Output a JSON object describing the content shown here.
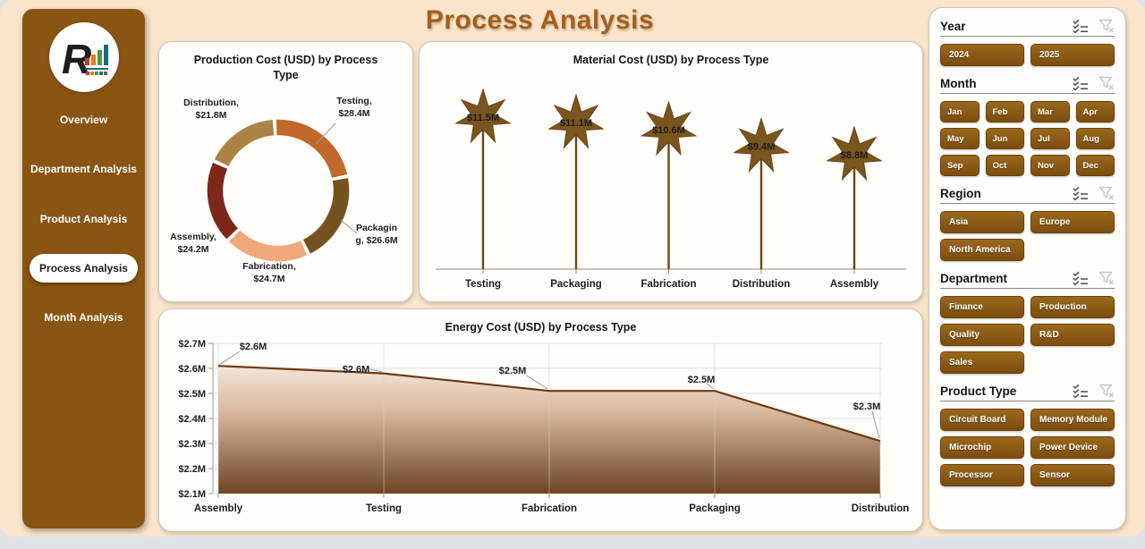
{
  "app": {
    "title": "Process Analysis",
    "logo_letter": "R"
  },
  "sidebar": {
    "items": [
      {
        "label": "Overview",
        "active": false
      },
      {
        "label": "Department Analysis",
        "active": false
      },
      {
        "label": "Product Analysis",
        "active": false
      },
      {
        "label": "Process Analysis",
        "active": true
      },
      {
        "label": "Month Analysis",
        "active": false
      }
    ]
  },
  "filters": {
    "header_icons": [
      "select-all-icon",
      "clear-filter-icon"
    ],
    "sections": [
      {
        "title": "Year",
        "options": [
          "2024",
          "2025"
        ]
      },
      {
        "title": "Month",
        "options": [
          "Jan",
          "Feb",
          "Mar",
          "Apr",
          "May",
          "Jun",
          "Jul",
          "Aug",
          "Sep",
          "Oct",
          "Nov",
          "Dec"
        ]
      },
      {
        "title": "Region",
        "options": [
          "Asia",
          "Europe",
          "North America"
        ]
      },
      {
        "title": "Department",
        "options": [
          "Finance",
          "Production",
          "Quality",
          "R&D",
          "Sales"
        ]
      },
      {
        "title": "Product Type",
        "options": [
          "Circuit Board",
          "Memory Module",
          "Microchip",
          "Power Device",
          "Processor",
          "Sensor"
        ]
      }
    ],
    "button_color": "#8a5716"
  },
  "chart_data": [
    {
      "type": "pie",
      "subtype": "donut",
      "title": "Production Cost (USD) by Process Type",
      "title_lines": [
        "Production Cost (USD) by Process",
        "Type"
      ],
      "categories": [
        "Testing",
        "Packaging",
        "Fabrication",
        "Assembly",
        "Distribution"
      ],
      "values": [
        28.4,
        26.6,
        24.7,
        24.2,
        21.8
      ],
      "unit": "USD millions",
      "colors": [
        "#C1692A",
        "#755320",
        "#F1A87B",
        "#7D2718",
        "#AD8345"
      ],
      "point_labels": [
        {
          "line1": "Testing,",
          "line2": "$28.4M"
        },
        {
          "line1": "Packagin",
          "line2": "g, $26.6M"
        },
        {
          "line1": "Fabrication,",
          "line2": "$24.7M"
        },
        {
          "line1": "Assembly,",
          "line2": "$24.2M"
        },
        {
          "line1": "Distribution,",
          "line2": "$21.8M"
        }
      ]
    },
    {
      "type": "bar",
      "subtype": "lollipop-star",
      "title": "Material Cost (USD) by Process Type",
      "categories": [
        "Testing",
        "Packaging",
        "Fabrication",
        "Distribution",
        "Assembly"
      ],
      "values": [
        11.5,
        11.1,
        10.6,
        9.4,
        8.8
      ],
      "labels": [
        "$11.5M",
        "$11.1M",
        "$10.6M",
        "$9.4M",
        "$8.8M"
      ],
      "unit": "USD millions",
      "marker_color": "#7A551E",
      "stem_color": "#6B4717",
      "label_color": "#ffffff"
    },
    {
      "type": "area",
      "title": "Energy Cost (USD) by Process Type",
      "categories": [
        "Assembly",
        "Testing",
        "Fabrication",
        "Packaging",
        "Distribution"
      ],
      "values": [
        2.61,
        2.58,
        2.51,
        2.51,
        2.31
      ],
      "labels": [
        "$2.6M",
        "$2.6M",
        "$2.5M",
        "$2.5M",
        "$2.3M"
      ],
      "unit": "USD millions",
      "ylim": [
        2.1,
        2.7
      ],
      "yticks": [
        "$2.1M",
        "$2.2M",
        "$2.3M",
        "$2.4M",
        "$2.5M",
        "$2.6M",
        "$2.7M"
      ],
      "grid": true,
      "line_color": "#6F3A12",
      "fill_gradient": [
        "#FEFCFA",
        "#D9B99E",
        "#6E4423"
      ]
    }
  ]
}
